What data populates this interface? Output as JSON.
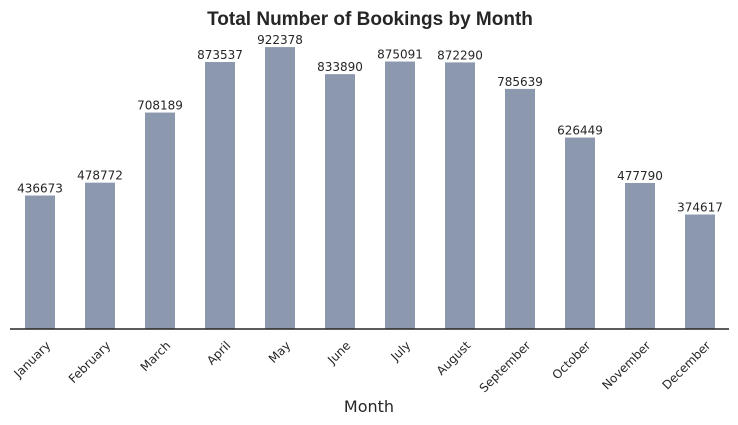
{
  "chart_data": {
    "type": "bar",
    "title": "Total Number of Bookings by Month",
    "xlabel": "Month",
    "ylabel": "",
    "categories": [
      "January",
      "February",
      "March",
      "April",
      "May",
      "June",
      "July",
      "August",
      "September",
      "October",
      "November",
      "December"
    ],
    "values": [
      436673,
      478772,
      708189,
      873537,
      922378,
      833890,
      875091,
      872290,
      785639,
      626449,
      477790,
      374617
    ],
    "value_labels": [
      "436673",
      "478772",
      "708189",
      "873537",
      "922378",
      "833890",
      "875091",
      "872290",
      "785639",
      "626449",
      "477790",
      "374617"
    ],
    "ylim": [
      0,
      968497
    ],
    "grid": false,
    "legend": "none",
    "bar_color": "#8c98ad",
    "axis_color": "#262626"
  }
}
